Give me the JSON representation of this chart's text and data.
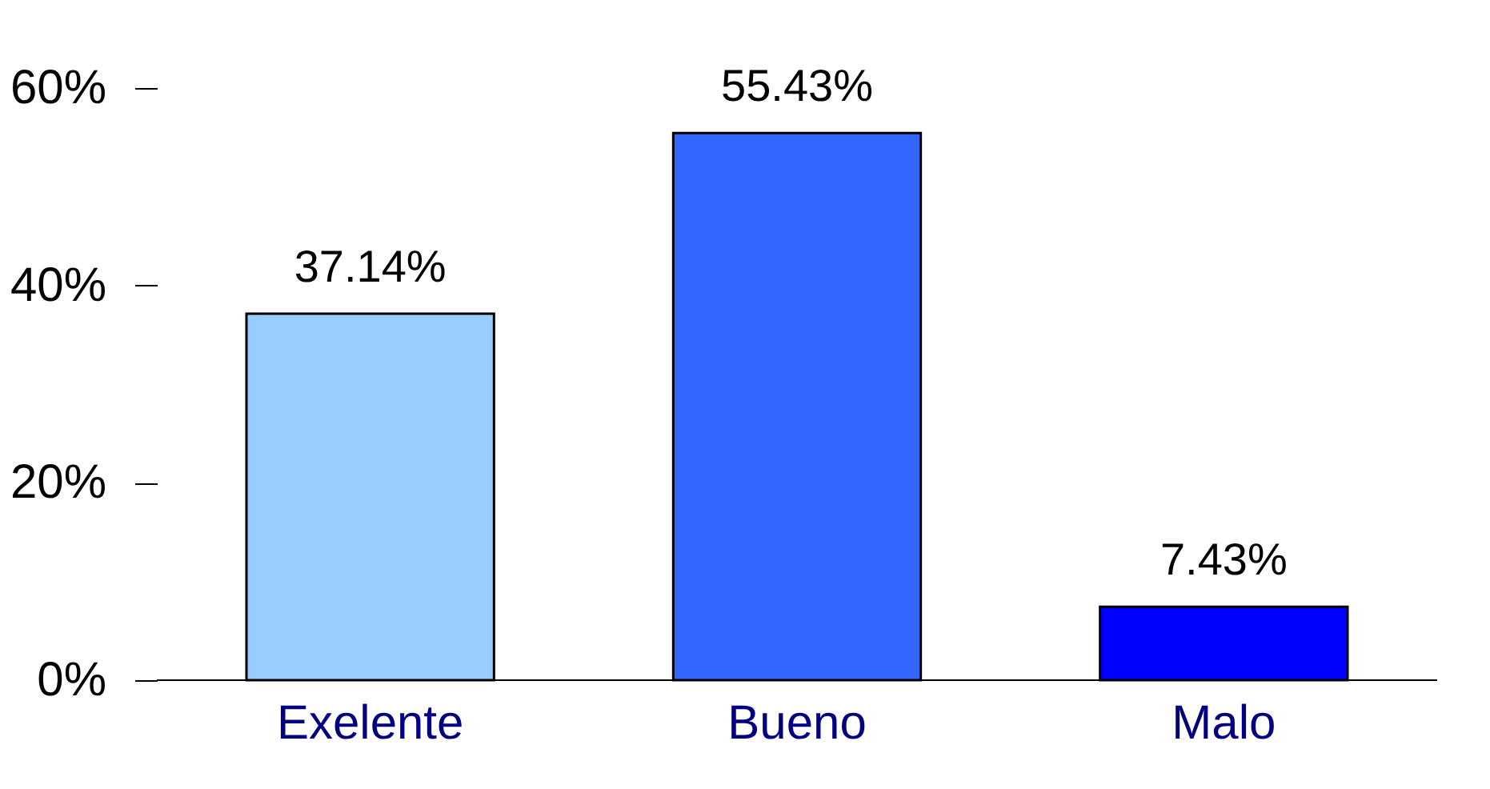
{
  "chart_data": {
    "type": "bar",
    "categories": [
      "Exelente",
      "Bueno",
      "Malo"
    ],
    "values": [
      37.14,
      55.43,
      7.43
    ],
    "colors": [
      "#99ccff",
      "#3366ff",
      "#0000ff"
    ],
    "value_labels": [
      "37.14%",
      "55.43%",
      "7.43%"
    ],
    "ylim": [
      0,
      60
    ],
    "yticks": [
      {
        "value": 0,
        "label": "0%"
      },
      {
        "value": 20,
        "label": "20%"
      },
      {
        "value": 40,
        "label": "40%"
      },
      {
        "value": 60,
        "label": "60%"
      }
    ],
    "grid": false
  }
}
